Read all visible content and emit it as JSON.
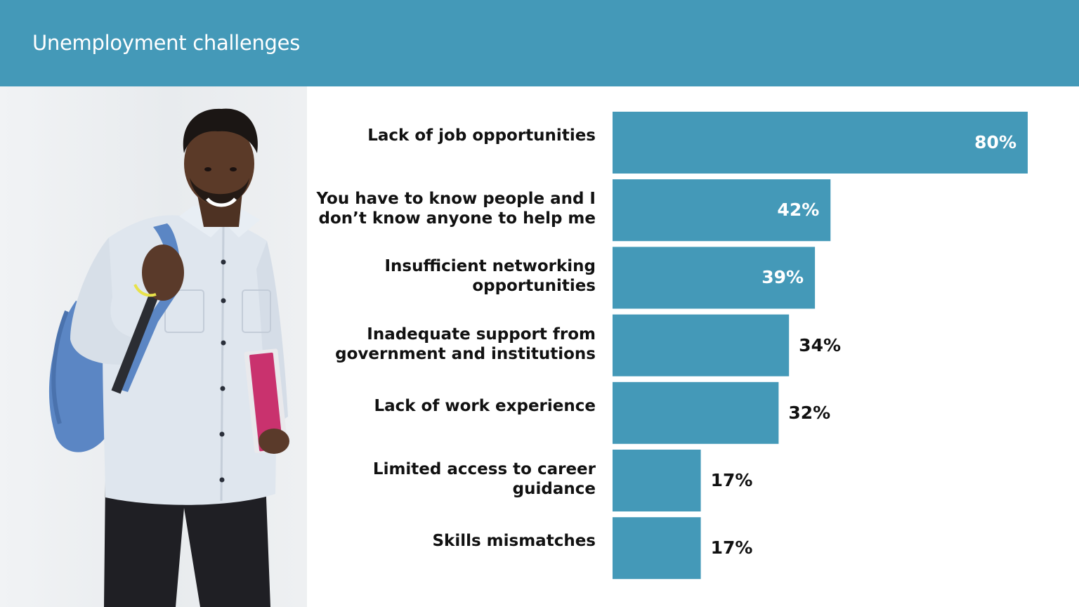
{
  "header": {
    "title": "Unemployment challenges"
  },
  "colors": {
    "accent": "#4499b8",
    "bar": "#4499b8",
    "label_inside": "#ffffff",
    "label_outside": "#111111"
  },
  "photo": {
    "icon": "student-with-backpack-photo"
  },
  "chart_data": {
    "type": "bar",
    "orientation": "horizontal",
    "title": "",
    "xlabel": "",
    "ylabel": "",
    "xlim": [
      0,
      80
    ],
    "grid": false,
    "legend": "none",
    "categories": [
      [
        "Lack of job opportunities"
      ],
      [
        "You have to know people and I",
        "don’t know anyone to help me"
      ],
      [
        "Insufficient  networking",
        "opportunities"
      ],
      [
        "Inadequate support from",
        "government and institutions"
      ],
      [
        "Lack of work experience"
      ],
      [
        "Limited access to career",
        "guidance"
      ],
      [
        "Skills mismatches"
      ]
    ],
    "values": [
      80,
      42,
      39,
      34,
      32,
      17,
      17
    ],
    "value_labels": [
      "80%",
      "42%",
      "39%",
      "34%",
      "32%",
      "17%",
      "17%"
    ]
  }
}
